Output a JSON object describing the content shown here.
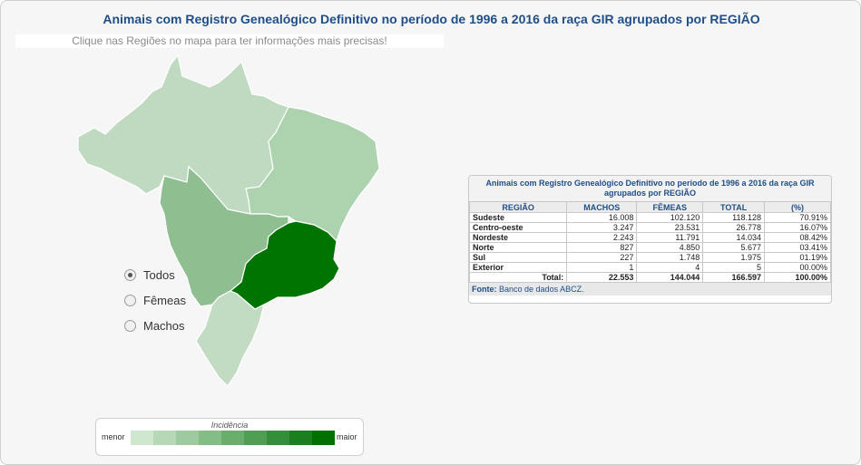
{
  "title": "Animais com Registro Genealógico Definitivo no período de 1996 a 2016 da raça GIR agrupados por REGIÃO",
  "hint": "Clique nas Regiões no mapa para ter informações mais precisas!",
  "map": {
    "regions": [
      {
        "name": "Norte",
        "color": "#bfdac0"
      },
      {
        "name": "Nordeste",
        "color": "#acd3ae"
      },
      {
        "name": "Centro-oeste",
        "color": "#8fbf91"
      },
      {
        "name": "Sudeste",
        "color": "#007400"
      },
      {
        "name": "Sul",
        "color": "#c2dcc3"
      }
    ]
  },
  "filters": [
    {
      "label": "Todos",
      "checked": true
    },
    {
      "label": "Fêmeas",
      "checked": false
    },
    {
      "label": "Machos",
      "checked": false
    }
  ],
  "legend": {
    "title": "Incidência",
    "min_label": "menor",
    "max_label": "maior",
    "colors": [
      "#cfe6cf",
      "#b6d8b7",
      "#9dcb9f",
      "#84bd86",
      "#6aad6d",
      "#4f9e53",
      "#358e39",
      "#1b7f1f",
      "#007000"
    ]
  },
  "table": {
    "title": "Animais com Registro Genealógico Definitivo no período de 1996 a 2016 da raça GIR agrupados por REGIÃO",
    "headers": [
      "REGIÃO",
      "MACHOS",
      "FÊMEAS",
      "TOTAL",
      "(%)"
    ],
    "rows": [
      {
        "regiao": "Sudeste",
        "machos": "16.008",
        "femeas": "102.120",
        "total": "118.128",
        "pct": "70.91%"
      },
      {
        "regiao": "Centro-oeste",
        "machos": "3.247",
        "femeas": "23.531",
        "total": "26.778",
        "pct": "16.07%"
      },
      {
        "regiao": "Nordeste",
        "machos": "2.243",
        "femeas": "11.791",
        "total": "14.034",
        "pct": "08.42%"
      },
      {
        "regiao": "Norte",
        "machos": "827",
        "femeas": "4.850",
        "total": "5.677",
        "pct": "03.41%"
      },
      {
        "regiao": "Sul",
        "machos": "227",
        "femeas": "1.748",
        "total": "1.975",
        "pct": "01.19%"
      },
      {
        "regiao": "Exterior",
        "machos": "1",
        "femeas": "4",
        "total": "5",
        "pct": "00.00%"
      }
    ],
    "total": {
      "label": "Total:",
      "machos": "22.553",
      "femeas": "144.044",
      "total": "166.597",
      "pct": "100.00%"
    },
    "source_label": "Fonte:",
    "source_text": "Banco de dados ABCZ."
  }
}
